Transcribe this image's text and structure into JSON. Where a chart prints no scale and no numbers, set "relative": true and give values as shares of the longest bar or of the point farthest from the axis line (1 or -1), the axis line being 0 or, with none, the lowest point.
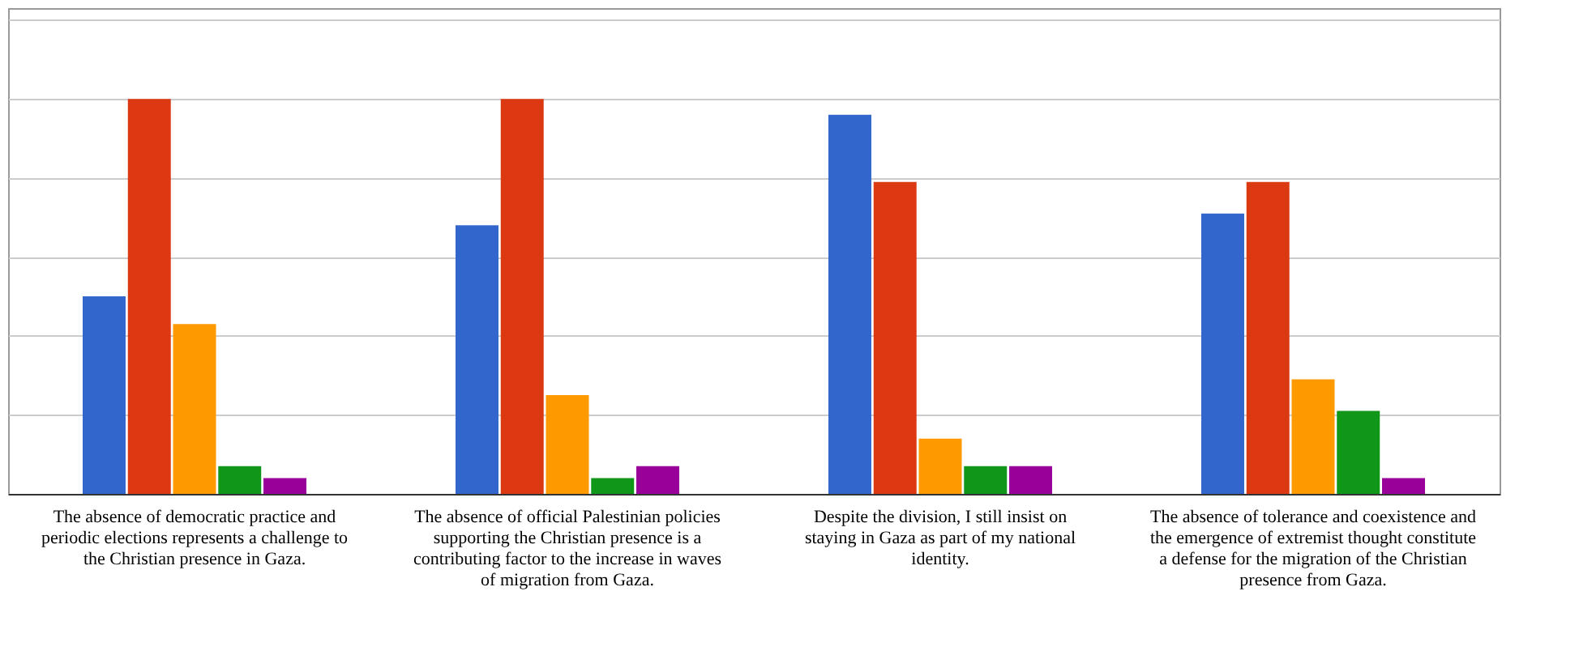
{
  "chart_data": {
    "type": "bar",
    "relative": true,
    "grid": "y",
    "categories": [
      "The absence of democratic practice and periodic elections represents a challenge to the Christian presence in Gaza.",
      "The absence of official Palestinian policies supporting the Christian presence is a contributing factor to the increase in waves of migration from Gaza.",
      "Despite the division, I still insist on staying in Gaza as part of my national identity.",
      "The absence of tolerance and coexistence and the emergence of extremist thought constitute a defense for the migration of the Christian presence from Gaza."
    ],
    "series": [
      {
        "color": "#3366cc",
        "values": [
          0.5,
          0.68,
          0.96,
          0.71
        ]
      },
      {
        "color": "#dc3912",
        "values": [
          1,
          1,
          0.79,
          0.79
        ]
      },
      {
        "color": "#ff9900",
        "values": [
          0.43,
          0.25,
          0.14,
          0.29
        ]
      },
      {
        "color": "#109618",
        "values": [
          0.07,
          0.04,
          0.07,
          0.21
        ]
      },
      {
        "color": "#990099",
        "values": [
          0.04,
          0.07,
          0.07,
          0.04
        ]
      }
    ]
  }
}
